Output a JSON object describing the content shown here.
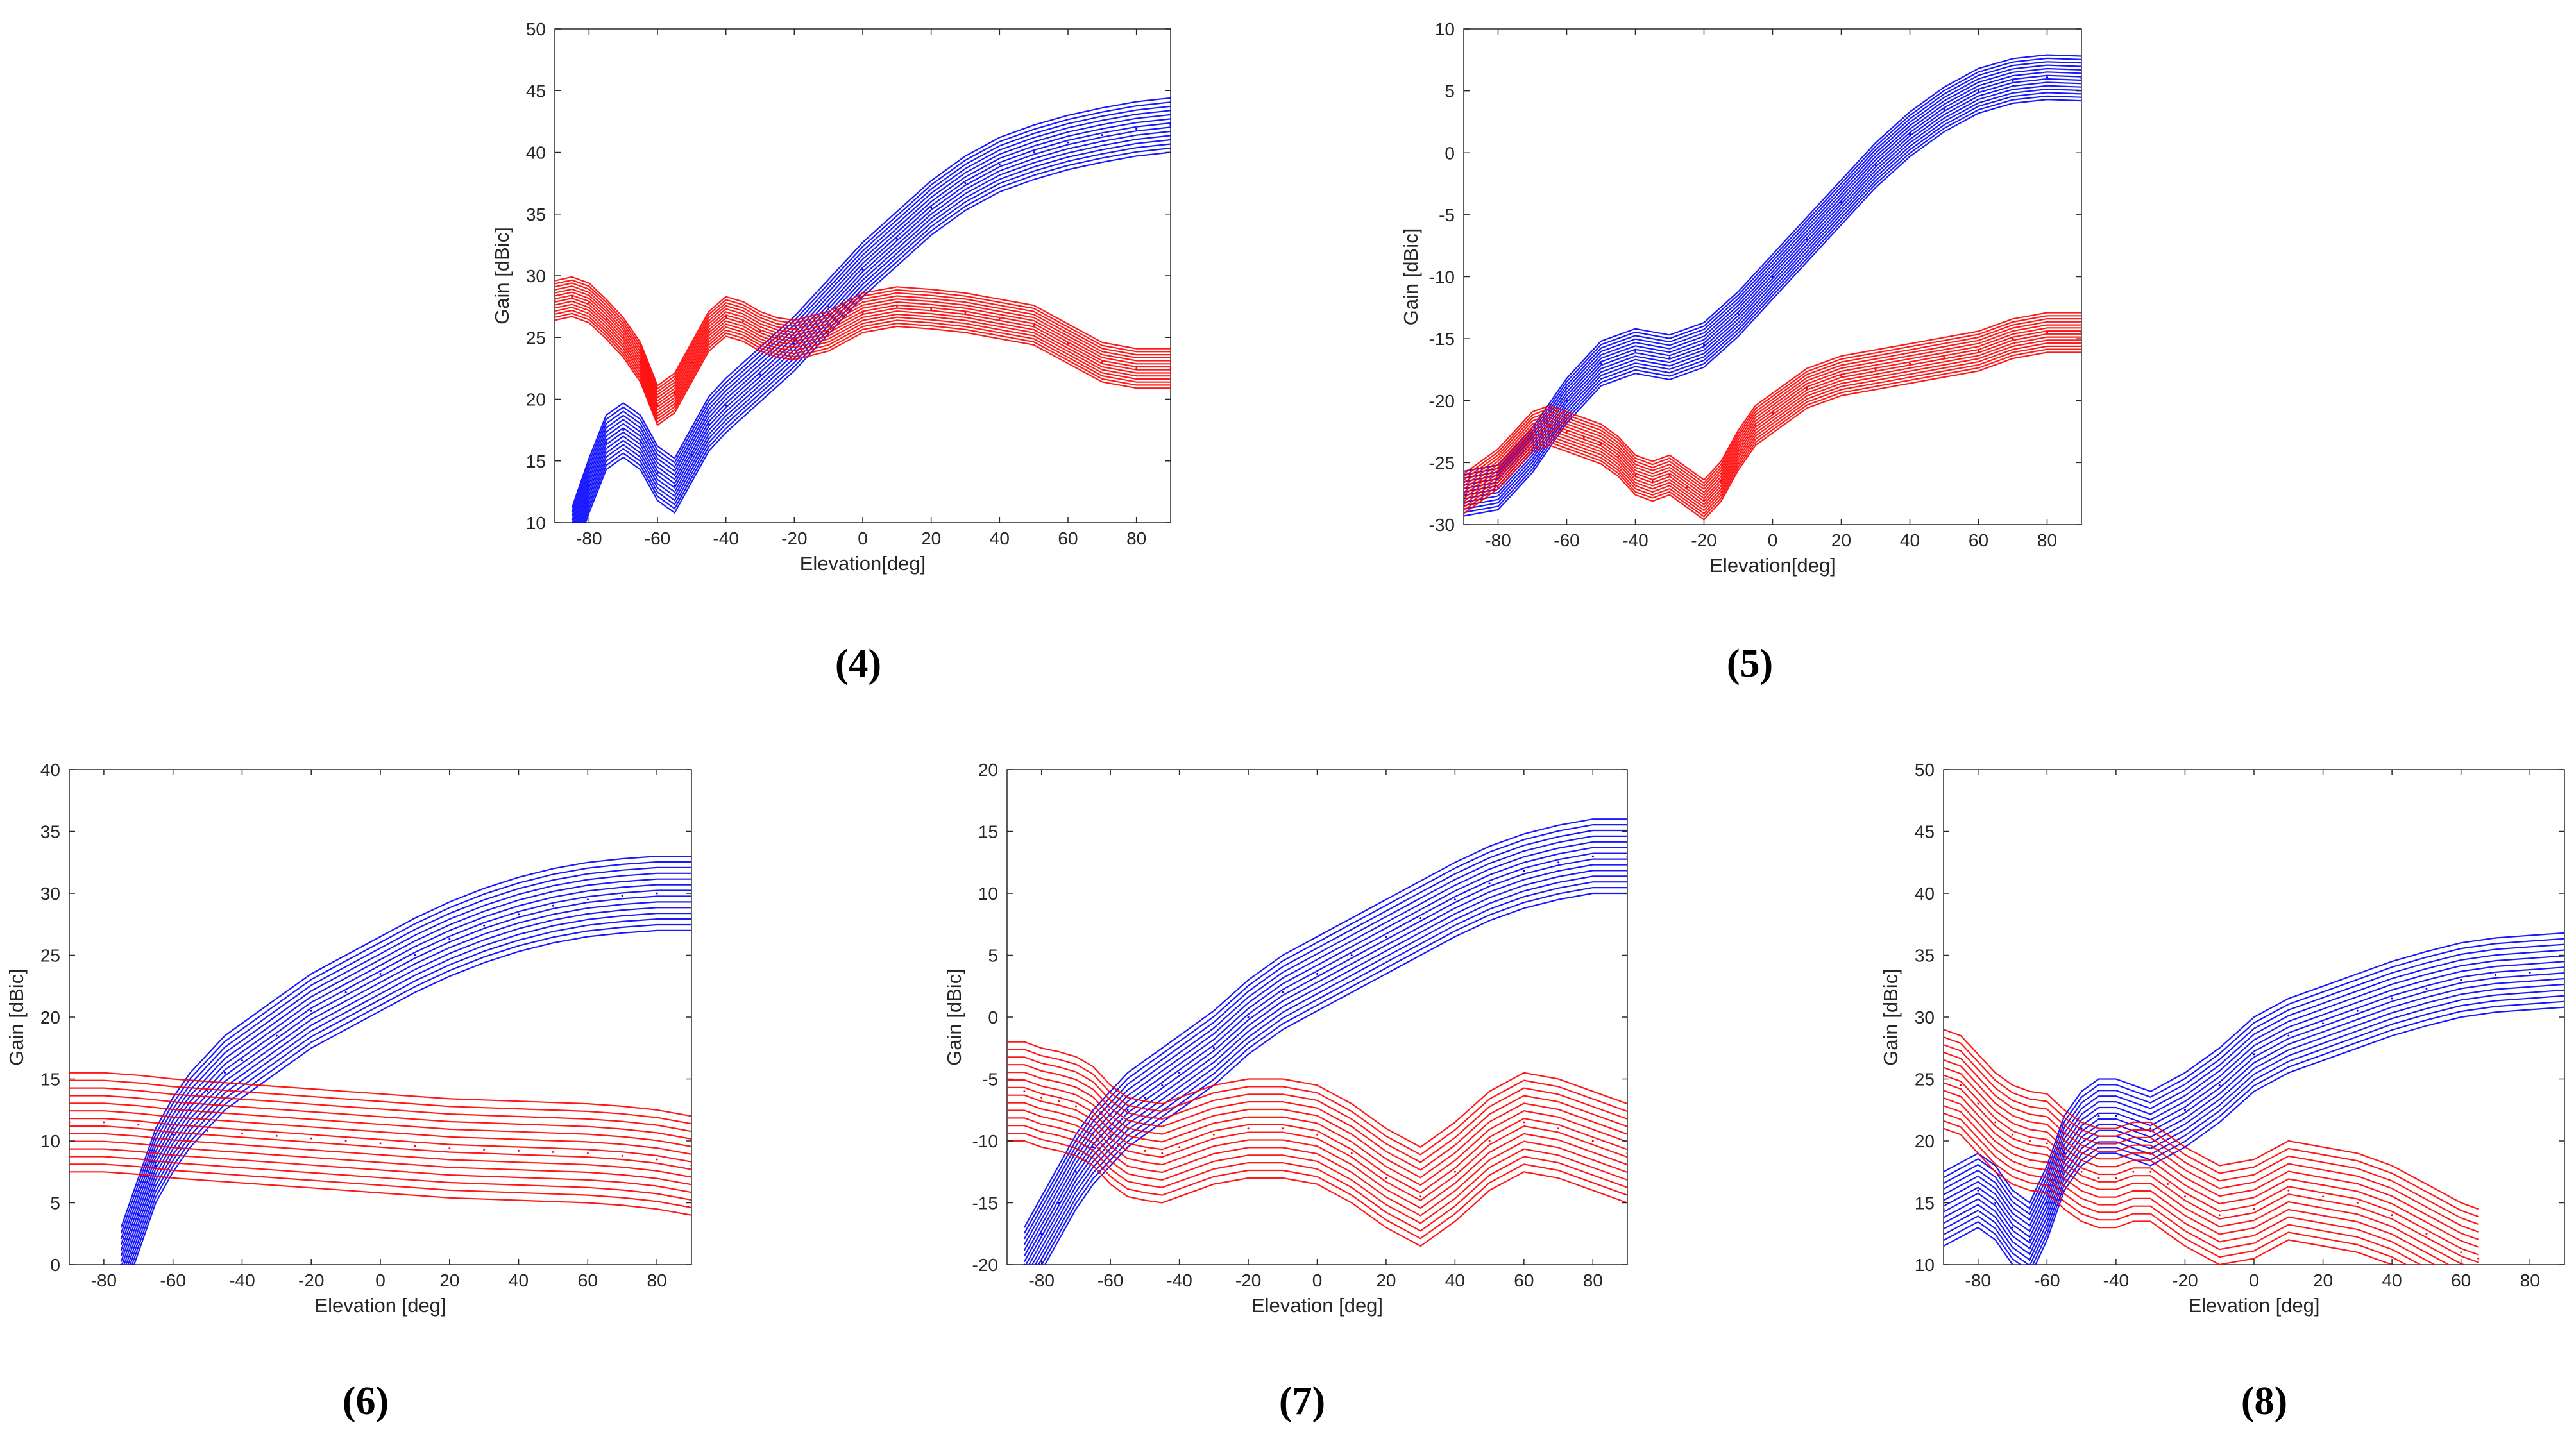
{
  "colors": {
    "copolar": "#0000ff",
    "crosspolar": "#ff0000",
    "axis": "#262626"
  },
  "chart_data": [
    {
      "id": "4",
      "caption": "(4)",
      "type": "line",
      "xlabel": "Elevation[deg]",
      "ylabel": "Gain [dBic]",
      "xlim": [
        -90,
        90
      ],
      "ylim": [
        10,
        50
      ],
      "xticks": [
        -80,
        -60,
        -40,
        -20,
        0,
        20,
        40,
        60,
        80
      ],
      "yticks": [
        10,
        15,
        20,
        25,
        30,
        35,
        40,
        45,
        50
      ],
      "series": [
        {
          "name": "blue",
          "color": "#0000ff",
          "thickness": 2.2,
          "x": [
            -85,
            -80,
            -75,
            -70,
            -65,
            -60,
            -55,
            -50,
            -45,
            -40,
            -30,
            -20,
            -10,
            0,
            10,
            20,
            30,
            40,
            50,
            60,
            70,
            80,
            90
          ],
          "values": [
            9,
            13,
            16.5,
            17.5,
            16.5,
            14,
            13,
            15.5,
            18,
            19.5,
            22,
            24.5,
            27.5,
            30.5,
            33,
            35.5,
            37.5,
            39,
            40,
            40.8,
            41.4,
            41.9,
            42.2
          ]
        },
        {
          "name": "red",
          "color": "#ff0000",
          "thickness": 1.6,
          "x": [
            -90,
            -85,
            -80,
            -75,
            -70,
            -65,
            -60,
            -55,
            -50,
            -45,
            -40,
            -35,
            -30,
            -25,
            -20,
            -10,
            0,
            10,
            20,
            30,
            40,
            50,
            60,
            70,
            80,
            90
          ],
          "values": [
            28,
            28.3,
            27.8,
            26.5,
            25,
            23,
            19.5,
            20.5,
            23,
            25.5,
            26.7,
            26.3,
            25.5,
            25,
            24.8,
            25.5,
            27,
            27.5,
            27.3,
            27,
            26.5,
            26,
            24.5,
            23,
            22.5,
            22.5
          ]
        }
      ]
    },
    {
      "id": "5",
      "caption": "(5)",
      "type": "line",
      "xlabel": "Elevation[deg]",
      "ylabel": "Gain [dBic]",
      "xlim": [
        -90,
        90
      ],
      "ylim": [
        -30,
        10
      ],
      "xticks": [
        -80,
        -60,
        -40,
        -20,
        0,
        20,
        40,
        60,
        80
      ],
      "yticks": [
        -30,
        -25,
        -20,
        -15,
        -10,
        -5,
        0,
        5,
        10
      ],
      "series": [
        {
          "name": "blue",
          "color": "#0000ff",
          "thickness": 1.8,
          "x": [
            -90,
            -80,
            -70,
            -60,
            -50,
            -40,
            -30,
            -20,
            -10,
            0,
            10,
            20,
            30,
            40,
            50,
            60,
            70,
            80,
            90
          ],
          "values": [
            -27.5,
            -27,
            -24,
            -20,
            -17,
            -16,
            -16.5,
            -15.5,
            -13,
            -10,
            -7,
            -4,
            -1,
            1.5,
            3.5,
            5,
            5.8,
            6.1,
            6
          ]
        },
        {
          "name": "red",
          "color": "#ff0000",
          "thickness": 1.6,
          "x": [
            -90,
            -85,
            -80,
            -75,
            -70,
            -65,
            -60,
            -55,
            -50,
            -45,
            -40,
            -35,
            -30,
            -25,
            -20,
            -15,
            -10,
            -5,
            0,
            10,
            20,
            30,
            40,
            50,
            60,
            70,
            80,
            90
          ],
          "values": [
            -27.5,
            -26.5,
            -25.5,
            -24,
            -22.5,
            -22,
            -22.5,
            -23,
            -23.5,
            -24.5,
            -26,
            -26.5,
            -26,
            -27,
            -28,
            -26.5,
            -24,
            -22,
            -21,
            -19,
            -18,
            -17.5,
            -17,
            -16.5,
            -16,
            -15,
            -14.5,
            -14.5
          ]
        }
      ]
    },
    {
      "id": "6",
      "caption": "(6)",
      "type": "line",
      "xlabel": "Elevation [deg]",
      "ylabel": "Gain [dBic]",
      "xlim": [
        -90,
        90
      ],
      "ylim": [
        0,
        40
      ],
      "xticks": [
        -80,
        -60,
        -40,
        -20,
        0,
        20,
        40,
        60,
        80
      ],
      "yticks": [
        0,
        5,
        10,
        15,
        20,
        25,
        30,
        35,
        40
      ],
      "series": [
        {
          "name": "blue",
          "color": "#0000ff",
          "thickness": 3,
          "x": [
            -75,
            -70,
            -65,
            -60,
            -55,
            -50,
            -45,
            -40,
            -30,
            -20,
            -10,
            0,
            10,
            20,
            30,
            40,
            50,
            60,
            70,
            80,
            90
          ],
          "values": [
            0,
            4,
            8,
            10.5,
            12.5,
            14,
            15.5,
            16.5,
            18.5,
            20.5,
            22,
            23.5,
            25,
            26.3,
            27.4,
            28.3,
            29,
            29.5,
            29.8,
            30,
            30
          ]
        },
        {
          "name": "red",
          "color": "#ff0000",
          "thickness": 4,
          "x": [
            -90,
            -80,
            -70,
            -60,
            -50,
            -40,
            -30,
            -20,
            -10,
            0,
            10,
            20,
            30,
            40,
            50,
            60,
            70,
            80,
            90
          ],
          "values": [
            11.5,
            11.5,
            11.3,
            11,
            10.8,
            10.6,
            10.4,
            10.2,
            10,
            9.8,
            9.6,
            9.4,
            9.3,
            9.2,
            9.1,
            9,
            8.8,
            8.5,
            8
          ]
        }
      ]
    },
    {
      "id": "7",
      "caption": "(7)",
      "type": "line",
      "xlabel": "Elevation [deg]",
      "ylabel": "Gain [dBic]",
      "xlim": [
        -90,
        90
      ],
      "ylim": [
        -20,
        20
      ],
      "xticks": [
        -80,
        -60,
        -40,
        -20,
        0,
        20,
        40,
        60,
        80
      ],
      "yticks": [
        -20,
        -15,
        -10,
        -5,
        0,
        5,
        10,
        15,
        20
      ],
      "series": [
        {
          "name": "blue",
          "color": "#0000ff",
          "thickness": 3,
          "x": [
            -85,
            -80,
            -75,
            -70,
            -65,
            -60,
            -55,
            -50,
            -45,
            -40,
            -30,
            -20,
            -10,
            0,
            10,
            20,
            30,
            40,
            50,
            60,
            70,
            80,
            90
          ],
          "values": [
            -20,
            -17.5,
            -15,
            -12.5,
            -10.5,
            -9,
            -7.5,
            -6.5,
            -5.5,
            -4.5,
            -2.5,
            0,
            2,
            3.5,
            5,
            6.5,
            8,
            9.5,
            10.8,
            11.8,
            12.5,
            13,
            13
          ]
        },
        {
          "name": "red",
          "color": "#ff0000",
          "thickness": 4,
          "x": [
            -90,
            -85,
            -80,
            -75,
            -70,
            -65,
            -60,
            -55,
            -50,
            -45,
            -40,
            -30,
            -20,
            -10,
            0,
            10,
            20,
            30,
            40,
            50,
            60,
            70,
            80,
            90
          ],
          "values": [
            -6,
            -6,
            -6.5,
            -6.8,
            -7.2,
            -8,
            -9.5,
            -10.5,
            -10.8,
            -11,
            -10.5,
            -9.5,
            -9,
            -9,
            -9.5,
            -11,
            -13,
            -14.5,
            -12.5,
            -10,
            -8.5,
            -9,
            -10,
            -11
          ]
        }
      ]
    },
    {
      "id": "8",
      "caption": "(8)",
      "type": "line",
      "xlabel": "Elevation [deg]",
      "ylabel": "Gain [dBic]",
      "xlim": [
        -90,
        90
      ],
      "ylim": [
        10,
        50
      ],
      "xticks": [
        -80,
        -60,
        -40,
        -20,
        0,
        20,
        40,
        60,
        80
      ],
      "yticks": [
        10,
        15,
        20,
        25,
        30,
        35,
        40,
        45,
        50
      ],
      "series": [
        {
          "name": "blue",
          "color": "#0000ff",
          "thickness": 3,
          "x": [
            -90,
            -80,
            -75,
            -70,
            -65,
            -60,
            -55,
            -50,
            -45,
            -40,
            -35,
            -30,
            -20,
            -10,
            0,
            10,
            20,
            30,
            40,
            50,
            60,
            70,
            80,
            90
          ],
          "values": [
            14.5,
            16,
            15,
            13,
            12,
            15,
            19,
            21,
            22,
            22,
            21.5,
            21,
            22.5,
            24.5,
            27,
            28.5,
            29.5,
            30.5,
            31.5,
            32.3,
            33,
            33.4,
            33.6,
            33.8
          ]
        },
        {
          "name": "red",
          "color": "#ff0000",
          "thickness": 4,
          "x": [
            -90,
            -85,
            -80,
            -75,
            -70,
            -65,
            -60,
            -55,
            -50,
            -45,
            -40,
            -35,
            -30,
            -25,
            -20,
            -10,
            0,
            10,
            20,
            30,
            40,
            50,
            60,
            65
          ],
          "values": [
            25,
            24.5,
            23,
            21.5,
            20.5,
            20,
            19.8,
            18.5,
            17.5,
            17,
            17,
            17.5,
            17.5,
            16.5,
            15.5,
            14,
            14.5,
            16,
            15.5,
            15,
            14,
            12.5,
            11,
            10.5
          ]
        }
      ]
    }
  ]
}
